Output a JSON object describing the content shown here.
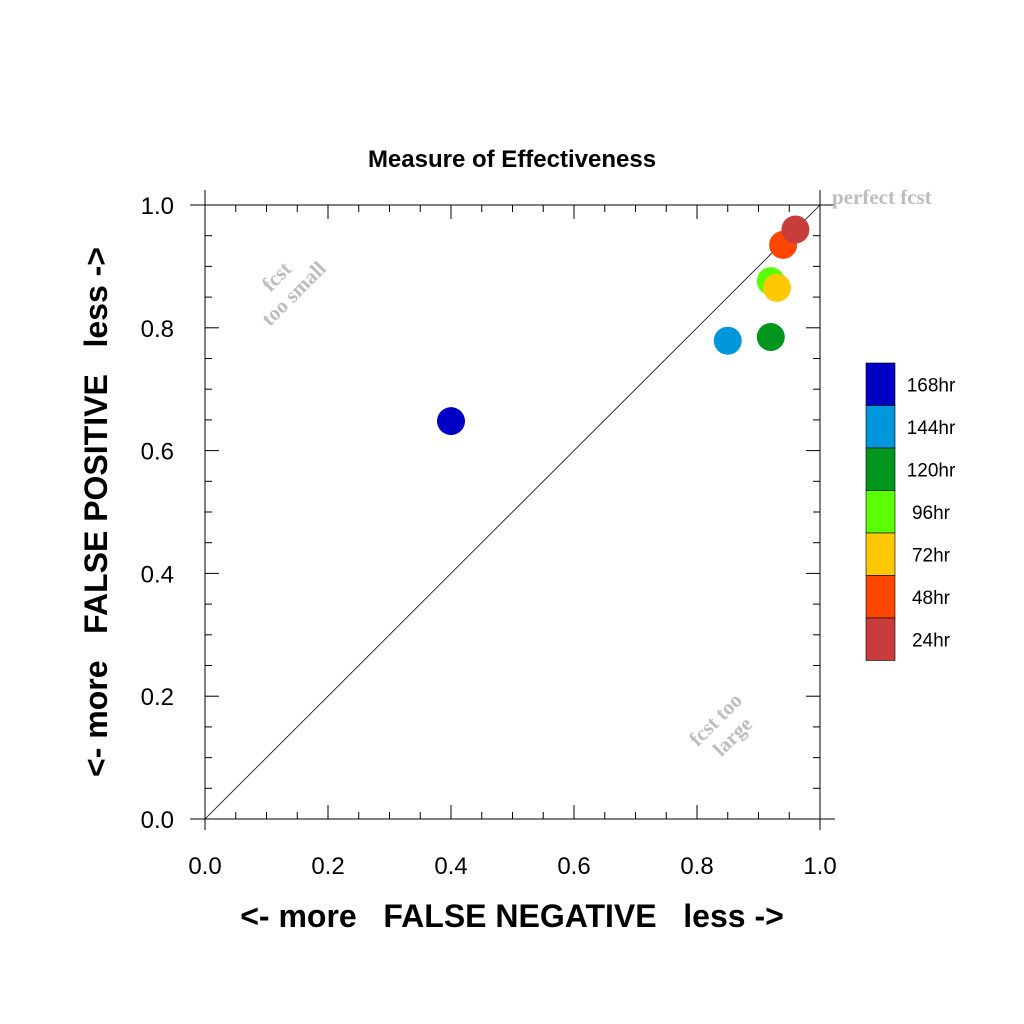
{
  "chart_data": {
    "type": "scatter",
    "title": "Measure of Effectiveness",
    "xlabel": "<- more   FALSE NEGATIVE   less ->",
    "ylabel": "<- more   FALSE POSITIVE   less ->",
    "xlim": [
      0.0,
      1.0
    ],
    "ylim": [
      0.0,
      1.0
    ],
    "xticks": [
      "0.0",
      "0.2",
      "0.4",
      "0.6",
      "0.8",
      "1.0"
    ],
    "yticks": [
      "0.0",
      "0.2",
      "0.4",
      "0.6",
      "0.8",
      "1.0"
    ],
    "grid": false,
    "diagonal_reference_line": true,
    "annotations": {
      "perfect": "perfect fcst",
      "too_small": [
        "fcst",
        "too small"
      ],
      "too_large": [
        "fcst too",
        "large"
      ]
    },
    "legend_position": "right",
    "series": [
      {
        "name": "168hr",
        "color": "#0000c4",
        "x": 0.4,
        "y": 0.648
      },
      {
        "name": "144hr",
        "color": "#0096dc",
        "x": 0.85,
        "y": 0.779
      },
      {
        "name": "120hr",
        "color": "#00961e",
        "x": 0.92,
        "y": 0.785
      },
      {
        "name": "96hr",
        "color": "#5aff00",
        "x": 0.92,
        "y": 0.876
      },
      {
        "name": "72hr",
        "color": "#ffc800",
        "x": 0.93,
        "y": 0.865
      },
      {
        "name": "48hr",
        "color": "#ff4600",
        "x": 0.94,
        "y": 0.935
      },
      {
        "name": "24hr",
        "color": "#c83c3c",
        "x": 0.96,
        "y": 0.96
      }
    ]
  }
}
